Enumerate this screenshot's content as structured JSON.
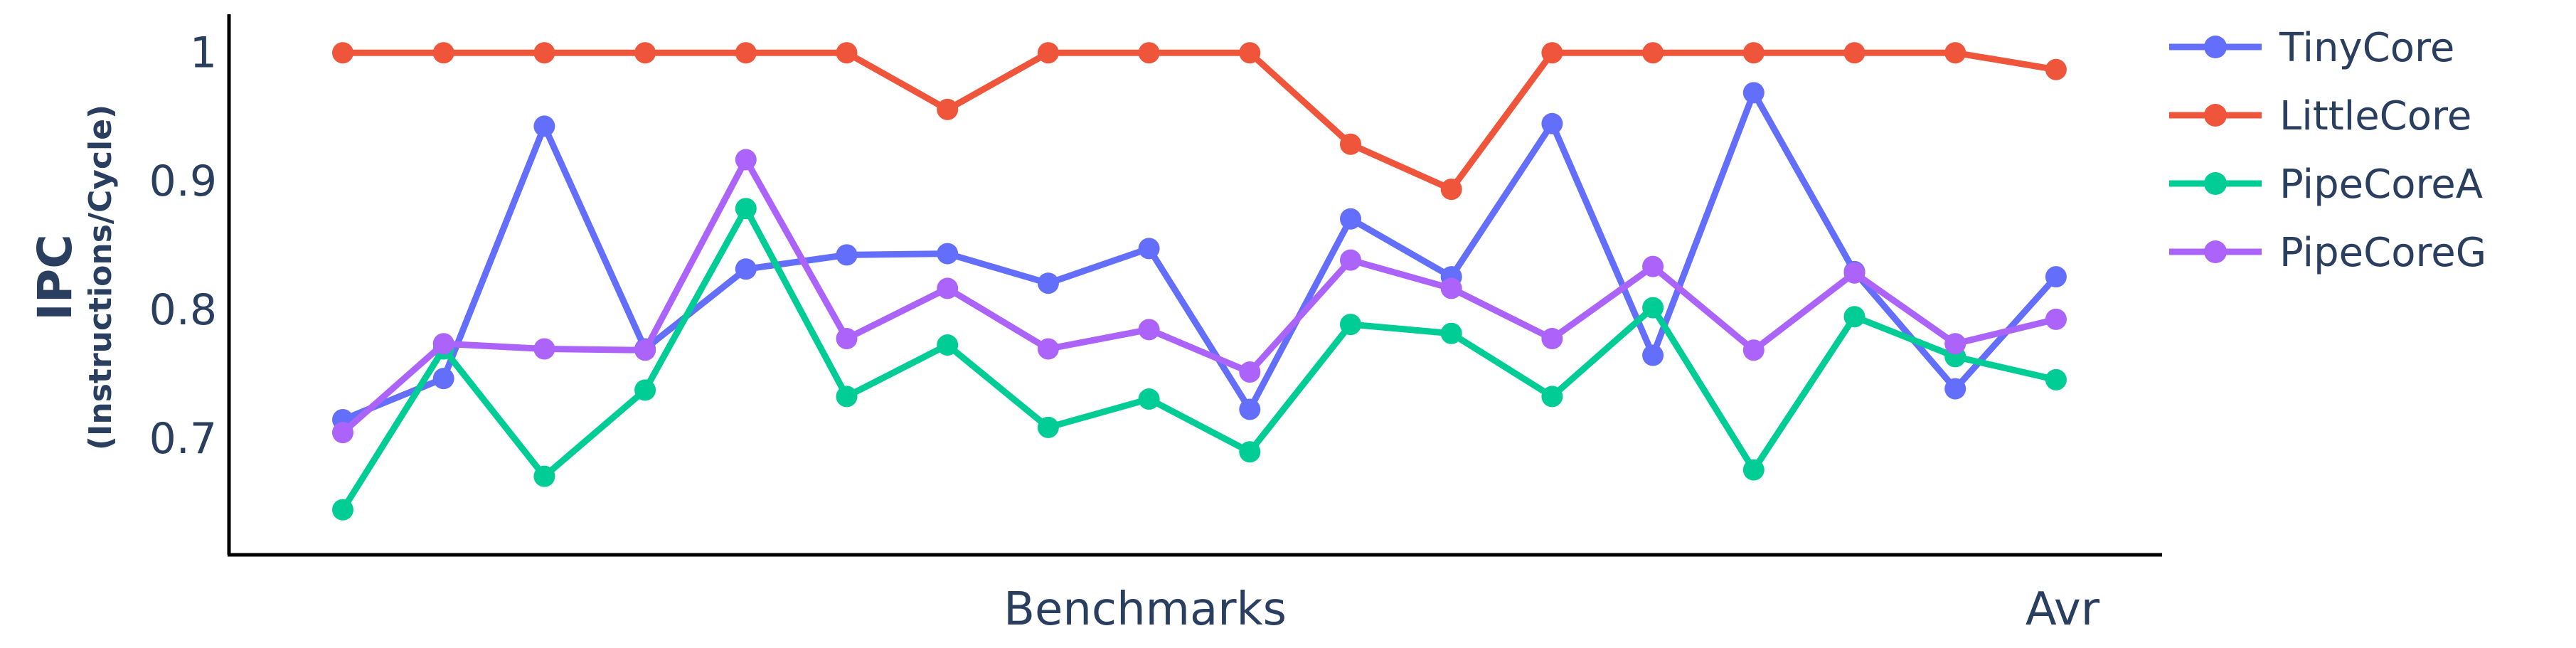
{
  "chart_data": {
    "type": "line",
    "ylabel": "IPC",
    "ylabel_sub": "(Instructions/Cycle)",
    "xlabel": "Benchmarks",
    "x_last_label": "Avr",
    "ylim": [
      0.61,
      1.03
    ],
    "yticks": [
      0.7,
      0.8,
      0.9,
      1
    ],
    "ytick_labels": [
      "0.7",
      "0.8",
      "0.9",
      "1"
    ],
    "legend_position": "right",
    "grid": false,
    "series": [
      {
        "name": "TinyCore",
        "color": "#636efa",
        "values": [
          0.715,
          0.747,
          0.943,
          0.77,
          0.832,
          0.843,
          0.844,
          0.821,
          0.848,
          0.723,
          0.871,
          0.826,
          0.945,
          0.765,
          0.969,
          0.83,
          0.739,
          0.826
        ]
      },
      {
        "name": "LittleCore",
        "color": "#ef553b",
        "values": [
          1.0,
          1.0,
          1.0,
          1.0,
          1.0,
          1.0,
          0.956,
          1.0,
          1.0,
          1.0,
          0.929,
          0.894,
          1.0,
          1.0,
          1.0,
          1.0,
          1.0,
          0.987
        ]
      },
      {
        "name": "PipeCoreA",
        "color": "#00cc96",
        "values": [
          0.645,
          0.77,
          0.671,
          0.738,
          0.879,
          0.733,
          0.773,
          0.709,
          0.731,
          0.69,
          0.789,
          0.782,
          0.733,
          0.802,
          0.676,
          0.795,
          0.764,
          0.746
        ]
      },
      {
        "name": "PipeCoreG",
        "color": "#ab63fa",
        "values": [
          0.705,
          0.774,
          0.77,
          0.769,
          0.917,
          0.778,
          0.817,
          0.77,
          0.785,
          0.752,
          0.839,
          0.817,
          0.778,
          0.834,
          0.769,
          0.829,
          0.774,
          0.793
        ]
      }
    ]
  }
}
